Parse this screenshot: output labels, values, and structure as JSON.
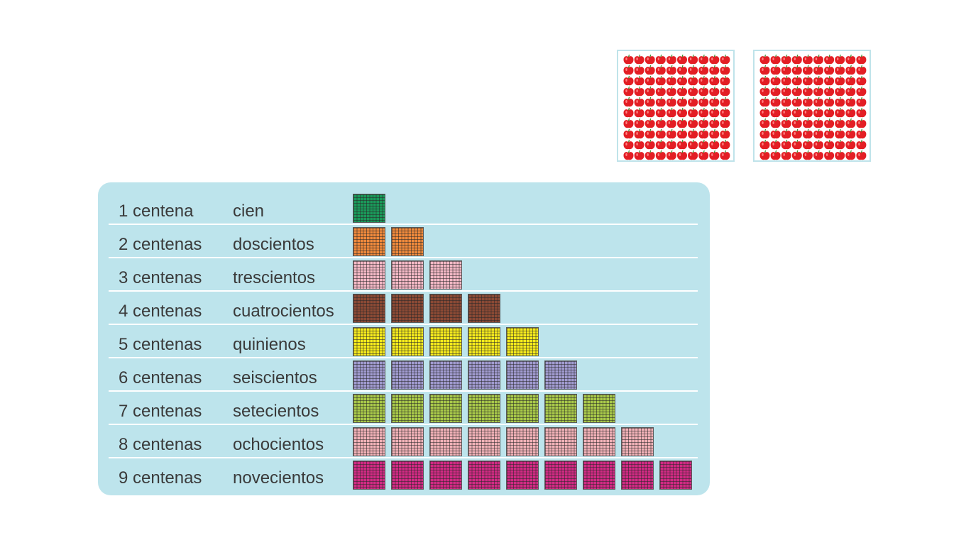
{
  "apple_boxes": [
    {
      "icon": "apple-grid-icon",
      "rows": 10,
      "cols": 10,
      "color": "#e31e24"
    },
    {
      "icon": "apple-grid-icon",
      "rows": 10,
      "cols": 10,
      "color": "#e31e24"
    }
  ],
  "table": {
    "rows": [
      {
        "count": "1 centena",
        "word": "cien",
        "blocks": 1,
        "color": "#1a9a5a"
      },
      {
        "count": "2 centenas",
        "word": "doscientos",
        "blocks": 2,
        "color": "#f08a3c"
      },
      {
        "count": "3 centenas",
        "word": "trescientos",
        "blocks": 3,
        "color": "#f4b9c6"
      },
      {
        "count": "4 centenas",
        "word": "cuatrocientos",
        "blocks": 4,
        "color": "#8b4a35"
      },
      {
        "count": "5 centenas",
        "word": "quinienos",
        "blocks": 5,
        "color": "#f7ec1c"
      },
      {
        "count": "6 centenas",
        "word": "seiscientos",
        "blocks": 6,
        "color": "#a19bd0"
      },
      {
        "count": "7 centenas",
        "word": "setecientos",
        "blocks": 7,
        "color": "#a9c94a"
      },
      {
        "count": "8 centenas",
        "word": "ochocientos",
        "blocks": 8,
        "color": "#f2b2b8"
      },
      {
        "count": "9 centenas",
        "word": "novecientos",
        "blocks": 9,
        "color": "#d22a84"
      }
    ]
  }
}
